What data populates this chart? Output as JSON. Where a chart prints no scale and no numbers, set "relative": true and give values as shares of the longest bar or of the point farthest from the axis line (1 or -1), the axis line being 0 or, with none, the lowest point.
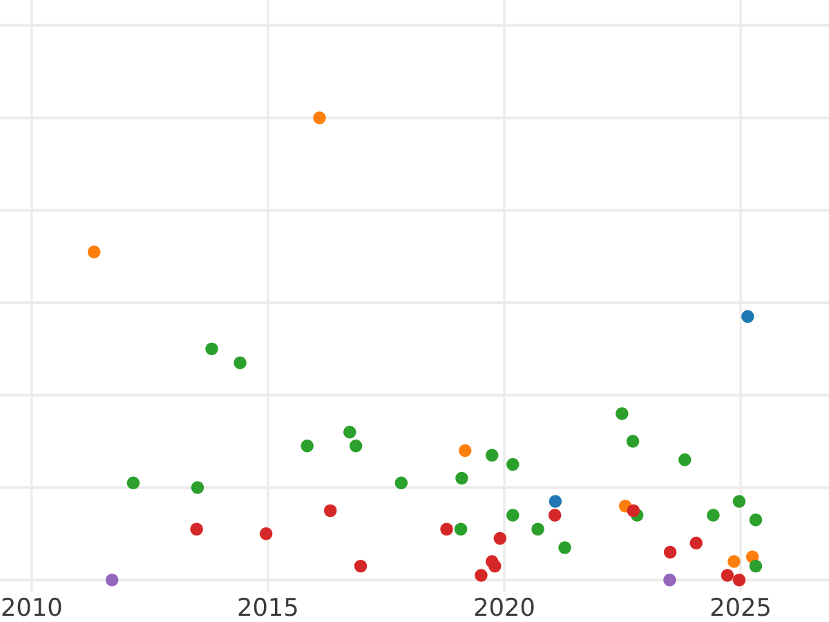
{
  "chart_data": {
    "type": "scatter",
    "relative": true,
    "marker": "circle",
    "grid": true,
    "xlim": [
      2009.33,
      2026.87
    ],
    "xticks": [
      2010,
      2015,
      2020,
      2025
    ],
    "series": [
      {
        "color": "#1f77b4",
        "x": [
          2025.15,
          2021.08
        ],
        "values": [
          0.57,
          0.17
        ]
      },
      {
        "color": "#ff7f0e",
        "x": [
          2011.32,
          2016.09,
          2019.17,
          2022.56,
          2024.86,
          2025.25
        ],
        "values": [
          0.71,
          1,
          0.28,
          0.16,
          0.04,
          0.05
        ]
      },
      {
        "color": "#2ca02c",
        "x": [
          2012.15,
          2013.51,
          2013.81,
          2014.41,
          2015.83,
          2016.73,
          2016.86,
          2017.82,
          2019.08,
          2019.1,
          2019.74,
          2020.18,
          2020.18,
          2020.71,
          2021.28,
          2022.49,
          2022.72,
          2022.81,
          2023.82,
          2024.42,
          2024.97,
          2025.32,
          2025.32
        ],
        "values": [
          0.21,
          0.2,
          0.5,
          0.47,
          0.29,
          0.32,
          0.29,
          0.21,
          0.11,
          0.22,
          0.27,
          0.25,
          0.14,
          0.11,
          0.07,
          0.36,
          0.3,
          0.14,
          0.26,
          0.14,
          0.17,
          0.13,
          0.03
        ]
      },
      {
        "color": "#d62728",
        "x": [
          2013.49,
          2014.96,
          2016.32,
          2016.96,
          2018.78,
          2019.51,
          2019.74,
          2019.8,
          2019.91,
          2021.07,
          2022.73,
          2023.51,
          2024.06,
          2024.72,
          2024.97
        ],
        "values": [
          0.11,
          0.1,
          0.15,
          0.03,
          0.11,
          0.01,
          0.04,
          0.03,
          0.09,
          0.14,
          0.15,
          0.06,
          0.08,
          0.01,
          0
        ]
      },
      {
        "color": "#9467bd",
        "x": [
          2011.7,
          2023.5
        ],
        "values": [
          0,
          0
        ]
      }
    ]
  }
}
